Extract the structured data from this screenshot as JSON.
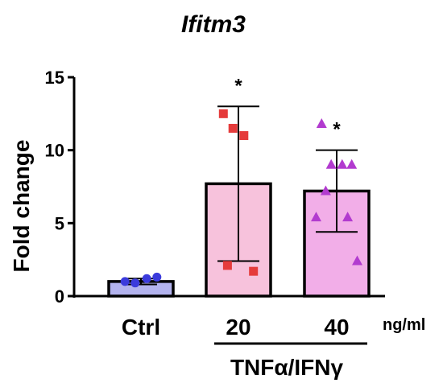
{
  "chart_data": {
    "type": "bar",
    "title": "Ifitm3",
    "ylabel": "Fold change",
    "xlabel": "",
    "ylim": [
      0,
      15
    ],
    "yticks": [
      0,
      5,
      10,
      15
    ],
    "unit_label": "ng/ml",
    "group_label": "TNFα/IFNγ",
    "categories": [
      "Ctrl",
      "20",
      "40"
    ],
    "bar_colors": [
      "#b3b3ee",
      "#f7c2dc",
      "#f2aee8"
    ],
    "point_colors": [
      "#3b3bdc",
      "#e53b3b",
      "#b23bcf"
    ],
    "point_shapes": [
      "circle",
      "square",
      "triangle"
    ],
    "values": [
      1.0,
      7.7,
      7.2
    ],
    "error_high": [
      1.2,
      13.0,
      10.0
    ],
    "error_low": [
      0.8,
      2.4,
      4.4
    ],
    "points": [
      [
        1.0,
        0.9,
        1.2,
        1.3
      ],
      [
        12.5,
        11.5,
        11.0,
        1.7,
        2.1
      ],
      [
        11.8,
        9.0,
        9.0,
        9.0,
        7.2,
        5.4,
        5.4,
        2.4
      ]
    ],
    "significance": [
      "",
      "*",
      "*"
    ]
  }
}
